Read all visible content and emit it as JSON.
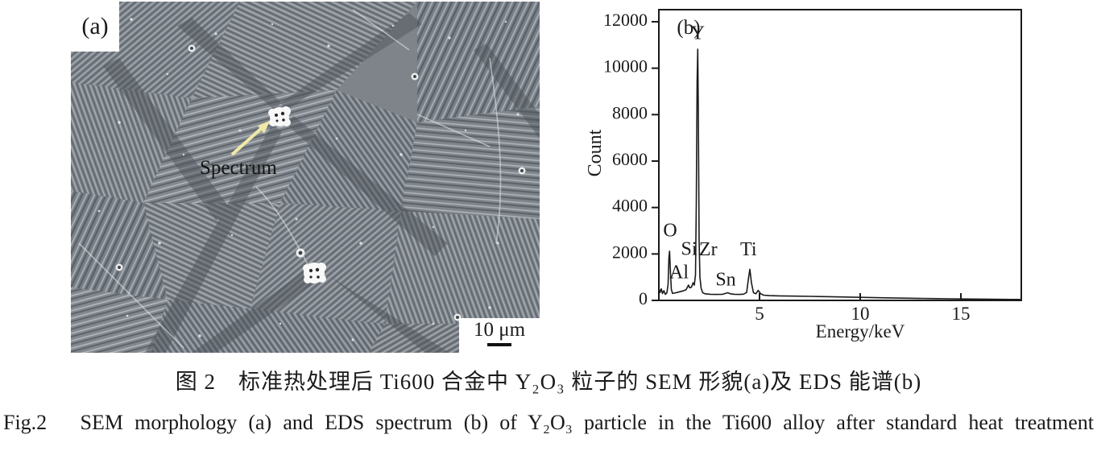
{
  "figure": {
    "panel_a": {
      "label": "(a)",
      "annotation": "Spectrum",
      "scale_bar_label": "10 μm"
    },
    "captions": {
      "zh": "图 2　标准热处理后 Ti600 合金中 Y₂O₃ 粒子的 SEM 形貌(a)及 EDS 能谱(b)",
      "en": "Fig.2　SEM morphology (a) and EDS spectrum (b) of Y₂O₃ particle in the Ti600 alloy after standard heat treatment"
    }
  },
  "chart_data": {
    "type": "line",
    "panel_label": "(b)",
    "title": "",
    "xlabel": "Energy/keV",
    "ylabel": "Count",
    "xlim": [
      0,
      18
    ],
    "ylim": [
      0,
      12000
    ],
    "xticks": [
      5,
      10,
      15
    ],
    "yticks": [
      0,
      2000,
      4000,
      6000,
      8000,
      10000,
      12000
    ],
    "grid": false,
    "legend": "none",
    "line_color": "#1a1a1a",
    "series": [
      {
        "name": "EDS spectrum",
        "points": [
          [
            0,
            520
          ],
          [
            0.06,
            340
          ],
          [
            0.12,
            500
          ],
          [
            0.18,
            300
          ],
          [
            0.25,
            420
          ],
          [
            0.32,
            260
          ],
          [
            0.4,
            330
          ],
          [
            0.46,
            700
          ],
          [
            0.5,
            1850
          ],
          [
            0.53,
            2120
          ],
          [
            0.57,
            1300
          ],
          [
            0.62,
            480
          ],
          [
            0.68,
            300
          ],
          [
            0.78,
            315
          ],
          [
            0.9,
            340
          ],
          [
            1.05,
            375
          ],
          [
            1.2,
            410
          ],
          [
            1.35,
            460
          ],
          [
            1.47,
            660
          ],
          [
            1.53,
            540
          ],
          [
            1.62,
            570
          ],
          [
            1.7,
            760
          ],
          [
            1.76,
            660
          ],
          [
            1.82,
            1100
          ],
          [
            1.86,
            4200
          ],
          [
            1.9,
            9400
          ],
          [
            1.93,
            10820
          ],
          [
            1.96,
            8200
          ],
          [
            2.0,
            2600
          ],
          [
            2.04,
            1000
          ],
          [
            2.1,
            520
          ],
          [
            2.18,
            330
          ],
          [
            2.3,
            285
          ],
          [
            2.55,
            265
          ],
          [
            2.85,
            258
          ],
          [
            3.15,
            260
          ],
          [
            3.42,
            330
          ],
          [
            3.55,
            285
          ],
          [
            3.75,
            262
          ],
          [
            4.0,
            258
          ],
          [
            4.2,
            268
          ],
          [
            4.36,
            340
          ],
          [
            4.45,
            950
          ],
          [
            4.52,
            1340
          ],
          [
            4.6,
            750
          ],
          [
            4.7,
            330
          ],
          [
            4.82,
            285
          ],
          [
            4.93,
            430
          ],
          [
            5.05,
            290
          ],
          [
            5.2,
            225
          ],
          [
            5.5,
            205
          ],
          [
            6,
            195
          ],
          [
            6.8,
            185
          ],
          [
            7.6,
            172
          ],
          [
            8.5,
            158
          ],
          [
            9.5,
            142
          ],
          [
            10.5,
            125
          ],
          [
            11.5,
            108
          ],
          [
            12.5,
            92
          ],
          [
            13.5,
            80
          ],
          [
            14.5,
            68
          ],
          [
            15.5,
            58
          ],
          [
            16.5,
            48
          ],
          [
            17.5,
            42
          ],
          [
            17.95,
            40
          ]
        ]
      }
    ],
    "peaks": [
      {
        "label": "O",
        "energy_keV": 0.52,
        "counts": 2120,
        "lx": 0.56,
        "ly": 2950
      },
      {
        "label": "Al",
        "energy_keV": 1.47,
        "counts": 660,
        "lx": 1.0,
        "ly": 1150
      },
      {
        "label": "Si",
        "energy_keV": 1.74,
        "counts": 760,
        "lx": 1.5,
        "ly": 2150
      },
      {
        "label": "Y",
        "energy_keV": 1.93,
        "counts": 10820,
        "lx": 1.93,
        "ly": 11450
      },
      {
        "label": "Zr",
        "energy_keV": 2.04,
        "counts": 1000,
        "lx": 2.45,
        "ly": 2130
      },
      {
        "label": "Sn",
        "energy_keV": 3.42,
        "counts": 330,
        "lx": 3.32,
        "ly": 830
      },
      {
        "label": "Ti",
        "energy_keV": 4.52,
        "counts": 1340,
        "lx": 4.45,
        "ly": 2130
      }
    ]
  }
}
